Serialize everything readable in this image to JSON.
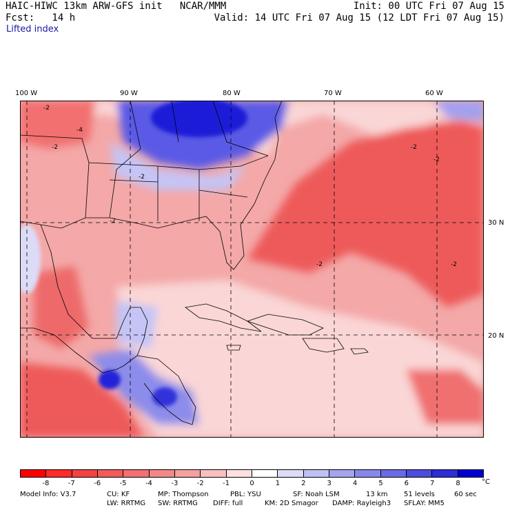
{
  "header": {
    "left_line1": "HAIC-HIWC 13km ARW-GFS init   NCAR/MMM",
    "left_line2": "Fcst:   14 h",
    "right_line1": "Init: 00 UTC Fri 07 Aug 15",
    "right_line2": "Valid: 14 UTC Fri 07 Aug 15 (12 LDT Fri 07 Aug 15)",
    "field_name": "Lifted index"
  },
  "axes": {
    "lon_labels": [
      "100 W",
      "90 W",
      "80 W",
      "70 W",
      "60 W"
    ],
    "lat_labels": [
      "30 N",
      "20 N"
    ]
  },
  "colorbar": {
    "labels": [
      "-8",
      "-7",
      "-6",
      "-5",
      "-4",
      "-3",
      "-2",
      "-1",
      "0",
      "1",
      "2",
      "3",
      "4",
      "5",
      "6",
      "7",
      "8"
    ],
    "unit": "°C",
    "colors": [
      "#ff0000",
      "#ff2a2a",
      "#f54242",
      "#f25a5a",
      "#f27070",
      "#f48888",
      "#f6a0a0",
      "#f9c0c0",
      "#fde0e0",
      "#ffffff",
      "#dcdcf8",
      "#c0c0f4",
      "#a4a4ef",
      "#8888ea",
      "#6a6ae4",
      "#4c4cde",
      "#2e2ed8",
      "#0000d0"
    ]
  },
  "model_info": {
    "line1": [
      "Model Info: V3.7",
      "CU: KF",
      "MP: Thompson",
      "PBL: YSU",
      "SF: Noah LSM",
      "13 km",
      "51 levels",
      "60 sec"
    ],
    "line2": [
      "LW: RRTMG",
      "SW: RRTMG",
      "DIFF: full",
      "KM: 2D Smagor",
      "DAMP: Rayleigh3",
      "SFLAY: MM5"
    ]
  },
  "contour_labels": [
    "-2",
    "-4",
    "-2",
    "-2",
    "-2",
    "-2",
    "-2",
    "-2",
    "-2"
  ],
  "map_colors": {
    "ocean_base": "#f4a8a8",
    "strong_red": "#ee5a5a",
    "light_pink": "#fad6d6",
    "blue": "#3a3ae0",
    "light_blue": "#c4c4f6"
  }
}
